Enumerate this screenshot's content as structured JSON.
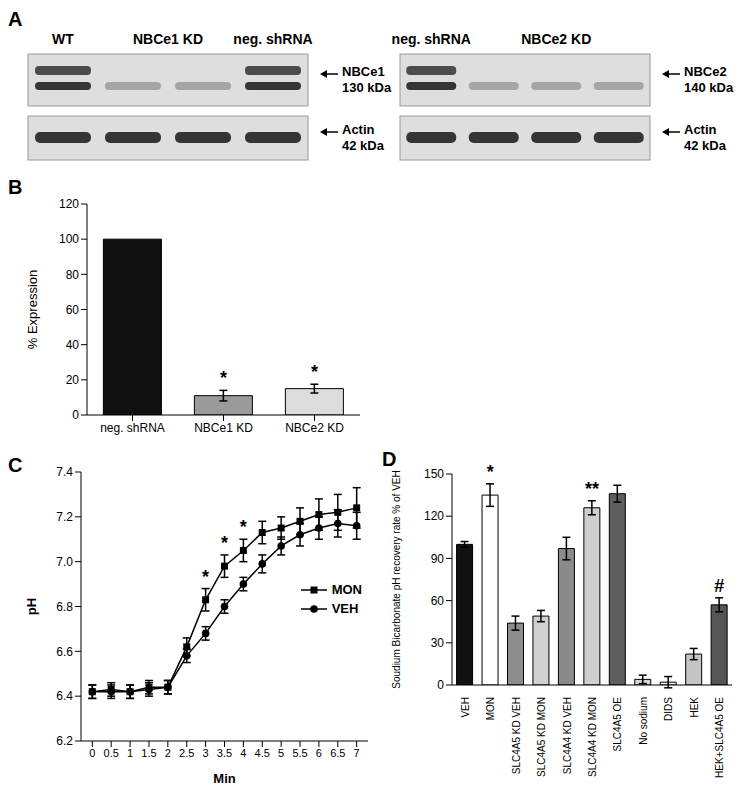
{
  "panel_labels": [
    "A",
    "B",
    "C",
    "D"
  ],
  "blots": [
    {
      "groups": [
        {
          "label": "WT",
          "lanes": 1
        },
        {
          "label": "NBCe1 KD",
          "lanes": 2
        },
        {
          "label": "neg. shRNA",
          "lanes": 1
        }
      ],
      "bands": [
        {
          "name": "NBCe1",
          "size": "130 kDa"
        },
        {
          "name": "Actin",
          "size": "42 kDa"
        }
      ]
    },
    {
      "groups": [
        {
          "label": "neg. shRNA",
          "lanes": 1
        },
        {
          "label": "NBCe2 KD",
          "lanes": 3
        }
      ],
      "bands": [
        {
          "name": "NBCe2",
          "size": "140 kDa"
        },
        {
          "name": "Actin",
          "size": "42 kDa"
        }
      ]
    }
  ],
  "chart_data": [
    {
      "type": "bar",
      "categories": [
        "neg. shRNA",
        "NBCe1 KD",
        "NBCe2 KD"
      ],
      "values": [
        100,
        11,
        15
      ],
      "errors": [
        0,
        3,
        2.5
      ],
      "colors": [
        "#111111",
        "#9a9a9a",
        "#dcdcdc"
      ],
      "ylabel": "% Expression",
      "ylim": [
        0,
        120
      ],
      "yticks": [
        0,
        20,
        40,
        60,
        80,
        100,
        120
      ],
      "annotations": [
        null,
        "*",
        "*"
      ]
    },
    {
      "type": "line",
      "x": [
        0,
        0.5,
        1,
        1.5,
        2,
        2.5,
        3,
        3.5,
        4,
        4.5,
        5,
        5.5,
        6,
        6.5,
        7
      ],
      "xlabel": "Min",
      "ylabel": "pH",
      "xlim": [
        -0.3,
        7.3
      ],
      "xticks": [
        0,
        0.5,
        1,
        1.5,
        2,
        2.5,
        3,
        3.5,
        4,
        4.5,
        5,
        5.5,
        6,
        6.5,
        7
      ],
      "ylim": [
        6.2,
        7.4
      ],
      "yticks": [
        6.2,
        6.4,
        6.6,
        6.8,
        {
          "value": 7,
          "label": "7.0"
        },
        7.2,
        7.4
      ],
      "legend": "right",
      "series": [
        {
          "name": "MON",
          "color": "#000000",
          "marker": "square",
          "values": [
            6.42,
            6.43,
            6.42,
            6.44,
            6.44,
            6.62,
            6.83,
            6.98,
            7.05,
            7.13,
            7.15,
            7.18,
            7.21,
            7.22,
            7.24
          ],
          "errors": [
            0.03,
            0.03,
            0.03,
            0.03,
            0.03,
            0.04,
            0.05,
            0.05,
            0.05,
            0.05,
            0.05,
            0.06,
            0.07,
            0.08,
            0.09
          ]
        },
        {
          "name": "VEH",
          "color": "#000000",
          "marker": "circle",
          "values": [
            6.42,
            6.42,
            6.42,
            6.43,
            6.44,
            6.58,
            6.68,
            6.8,
            6.9,
            6.99,
            7.07,
            7.12,
            7.15,
            7.17,
            7.16
          ],
          "errors": [
            0.03,
            0.03,
            0.03,
            0.03,
            0.03,
            0.03,
            0.03,
            0.03,
            0.03,
            0.04,
            0.04,
            0.05,
            0.05,
            0.06,
            0.06
          ]
        }
      ],
      "annotations": [
        {
          "x": 3,
          "text": "*"
        },
        {
          "x": 3.5,
          "text": "*"
        },
        {
          "x": 4,
          "text": "*"
        }
      ]
    },
    {
      "type": "bar",
      "categories": [
        "VEH",
        "MON",
        "SLC4A5 KD VEH",
        "SLC4A5 KD MON",
        "SLC4A4 KD VEH",
        "SLC4A4 KD MON",
        "SLC4A5 OE",
        "No sodium",
        "DIDS",
        "HEK",
        "HEK+SLC4A5 OE"
      ],
      "values": [
        100,
        135,
        44,
        49,
        97,
        126,
        136,
        4,
        2,
        22,
        57
      ],
      "errors": [
        2,
        8,
        5,
        4,
        8,
        5,
        6,
        3,
        4,
        4,
        5
      ],
      "colors": [
        "#111111",
        "#ffffff",
        "#8c8c8c",
        "#d0d0d0",
        "#8a8a8a",
        "#cfcfcf",
        "#5e5e5e",
        "#d6d6d6",
        "#f2f2f2",
        "#c4c4c4",
        "#555555"
      ],
      "ylabel": "Soudium Bicarbonate pH recovery rate % of VEH",
      "ylim": [
        0,
        150
      ],
      "yticks": [
        0,
        30,
        60,
        90,
        120,
        150
      ],
      "annotations": [
        null,
        "*",
        null,
        null,
        null,
        "**",
        null,
        null,
        null,
        null,
        "#"
      ]
    }
  ]
}
